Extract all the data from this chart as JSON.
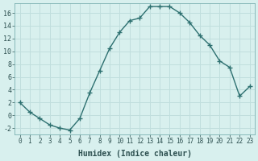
{
  "x": [
    0,
    1,
    2,
    3,
    4,
    5,
    6,
    7,
    8,
    9,
    10,
    11,
    12,
    13,
    14,
    15,
    16,
    17,
    18,
    19,
    20,
    21,
    22,
    23
  ],
  "y": [
    2,
    0.5,
    -0.5,
    -1.5,
    -2,
    -2.3,
    -0.5,
    3.5,
    7.0,
    10.5,
    13.0,
    14.8,
    15.2,
    17.0,
    17.0,
    17.0,
    16.0,
    14.5,
    12.5,
    11.0,
    8.5,
    7.5,
    3.0,
    4.5
  ],
  "xlabel": "Humidex (Indice chaleur)",
  "xlim": [
    -0.5,
    23.5
  ],
  "ylim": [
    -3,
    17.5
  ],
  "yticks": [
    -2,
    0,
    2,
    4,
    6,
    8,
    10,
    12,
    14,
    16
  ],
  "xticks": [
    0,
    1,
    2,
    3,
    4,
    5,
    6,
    7,
    8,
    9,
    10,
    11,
    12,
    13,
    14,
    15,
    16,
    17,
    18,
    19,
    20,
    21,
    22,
    23
  ],
  "line_color": "#2d7070",
  "marker": "+",
  "bg_color": "#d8f0ee",
  "grid_color": "#c0dedd",
  "label_color": "#2d5050",
  "tick_color": "#2d5050",
  "spine_color": "#7ab0b0",
  "linewidth": 1.0,
  "markersize": 4.5,
  "tick_fontsize": 5.5,
  "xlabel_fontsize": 7.0
}
